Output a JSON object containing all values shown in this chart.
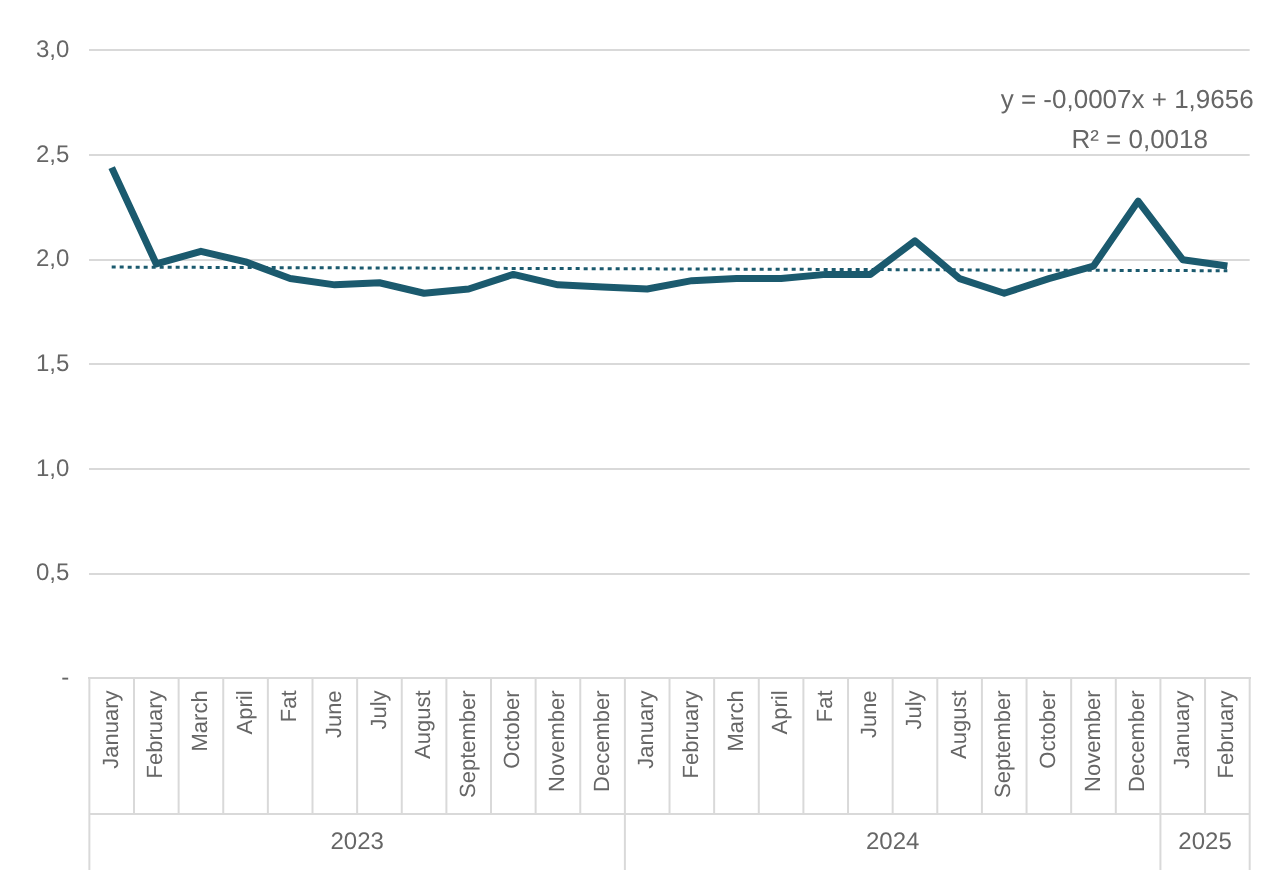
{
  "chart_data": {
    "type": "line",
    "categories": [
      "January",
      "February",
      "March",
      "April",
      "Fat",
      "June",
      "July",
      "August",
      "September",
      "October",
      "November",
      "December",
      "January",
      "February",
      "March",
      "April",
      "Fat",
      "June",
      "July",
      "August",
      "September",
      "October",
      "November",
      "December",
      "January",
      "February"
    ],
    "series": [
      {
        "color": "#1b5a6e",
        "values": [
          2.44,
          1.98,
          2.04,
          1.99,
          1.91,
          1.88,
          1.89,
          1.84,
          1.86,
          1.93,
          1.88,
          1.87,
          1.86,
          1.9,
          1.91,
          1.91,
          1.93,
          1.93,
          2.09,
          1.91,
          1.84,
          1.91,
          1.97,
          2.28,
          2.0,
          1.97
        ]
      },
      {
        "type": "line",
        "color": "#1b5a6e",
        "line_style": "dotted",
        "values": [
          1.9649,
          null,
          null,
          null,
          null,
          null,
          null,
          null,
          null,
          null,
          null,
          null,
          null,
          null,
          null,
          null,
          null,
          null,
          null,
          null,
          null,
          null,
          null,
          null,
          null,
          1.9474
        ]
      }
    ],
    "ylim": [
      0,
      3
    ],
    "yticks": [
      {
        "value": 0,
        "label": "-"
      },
      {
        "value": 0.5,
        "label": "0,5"
      },
      {
        "value": 1,
        "label": "1,0"
      },
      {
        "value": 1.5,
        "label": "1,5"
      },
      {
        "value": 2,
        "label": "2,0"
      },
      {
        "value": 2.5,
        "label": "2,5"
      },
      {
        "value": 3,
        "label": "3,0"
      }
    ],
    "grid": "y",
    "legend": false,
    "marker": "none",
    "annotations": [
      "y = -0,0007x + 1,9656",
      "R² = 0,0018",
      "2023",
      "2024",
      "2025"
    ]
  }
}
